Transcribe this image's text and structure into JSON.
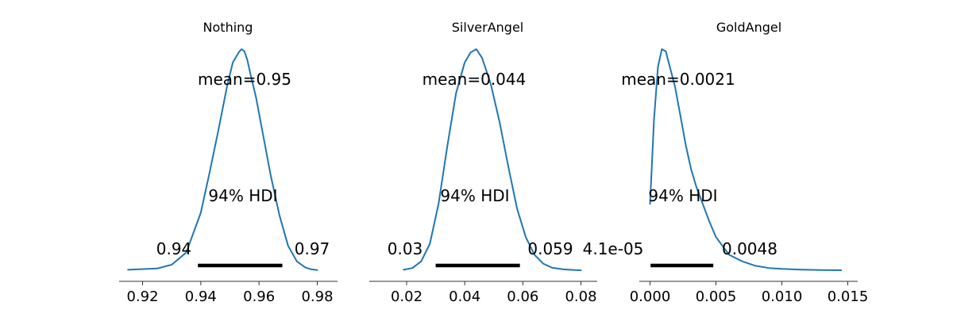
{
  "colors": {
    "kde": "#1f77b4",
    "hdi": "#000000",
    "axis": "#333333"
  },
  "chart_data": [
    {
      "type": "line",
      "title": "Nothing",
      "mean_label": "mean=0.95",
      "hdi_label": "94% HDI",
      "hdi": [
        0.939,
        0.968
      ],
      "hdi_low_label": "0.94",
      "hdi_high_label": "0.97",
      "xlim": [
        0.915,
        0.983
      ],
      "xticks": [
        0.92,
        0.94,
        0.96,
        0.98
      ],
      "xtick_labels": [
        "0.92",
        "0.94",
        "0.96",
        "0.98"
      ],
      "density": {
        "x": [
          0.915,
          0.925,
          0.93,
          0.935,
          0.94,
          0.943,
          0.946,
          0.949,
          0.951,
          0.953,
          0.954,
          0.955,
          0.956,
          0.957,
          0.959,
          0.961,
          0.964,
          0.967,
          0.97,
          0.973,
          0.976,
          0.978,
          0.98
        ],
        "y": [
          0.002,
          0.008,
          0.025,
          0.08,
          0.26,
          0.44,
          0.63,
          0.83,
          0.94,
          0.985,
          1.0,
          0.99,
          0.95,
          0.89,
          0.78,
          0.64,
          0.43,
          0.25,
          0.11,
          0.04,
          0.012,
          0.004,
          0.001
        ]
      }
    },
    {
      "type": "line",
      "title": "SilverAngel",
      "mean_label": "mean=0.044",
      "hdi_label": "94% HDI",
      "hdi": [
        0.03,
        0.059
      ],
      "hdi_low_label": "0.03",
      "hdi_high_label": "0.059",
      "xlim": [
        0.017,
        0.082
      ],
      "xticks": [
        0.02,
        0.04,
        0.06,
        0.08
      ],
      "xtick_labels": [
        "0.02",
        "0.04",
        "0.06",
        "0.08"
      ],
      "density": {
        "x": [
          0.019,
          0.022,
          0.025,
          0.028,
          0.031,
          0.034,
          0.037,
          0.04,
          0.042,
          0.044,
          0.046,
          0.049,
          0.052,
          0.055,
          0.058,
          0.061,
          0.064,
          0.067,
          0.07,
          0.074,
          0.078,
          0.08
        ],
        "y": [
          0.002,
          0.01,
          0.04,
          0.12,
          0.3,
          0.56,
          0.8,
          0.94,
          0.985,
          1.0,
          0.96,
          0.84,
          0.67,
          0.47,
          0.28,
          0.15,
          0.07,
          0.03,
          0.012,
          0.004,
          0.001,
          0.0
        ]
      }
    },
    {
      "type": "line",
      "title": "GoldAngel",
      "mean_label": "mean=0.0021",
      "hdi_label": "94% HDI",
      "hdi": [
        4.1e-05,
        0.0048
      ],
      "hdi_low_label": "4.1e-05",
      "hdi_high_label": "0.0048",
      "xlim": [
        -0.0008,
        0.0152
      ],
      "xticks": [
        0.0,
        0.005,
        0.01,
        0.015
      ],
      "xtick_labels": [
        "0.000",
        "0.005",
        "0.010",
        "0.015"
      ],
      "density": {
        "x": [
          0.0,
          0.0003,
          0.0006,
          0.0009,
          0.0012,
          0.0015,
          0.0019,
          0.0023,
          0.0027,
          0.0031,
          0.0035,
          0.004,
          0.0045,
          0.005,
          0.0055,
          0.006,
          0.007,
          0.008,
          0.009,
          0.01,
          0.0115,
          0.013,
          0.0145
        ],
        "y": [
          0.3,
          0.68,
          0.92,
          1.0,
          0.99,
          0.92,
          0.83,
          0.7,
          0.57,
          0.46,
          0.38,
          0.3,
          0.22,
          0.15,
          0.11,
          0.07,
          0.04,
          0.02,
          0.01,
          0.006,
          0.003,
          0.001,
          0.0
        ]
      }
    }
  ]
}
